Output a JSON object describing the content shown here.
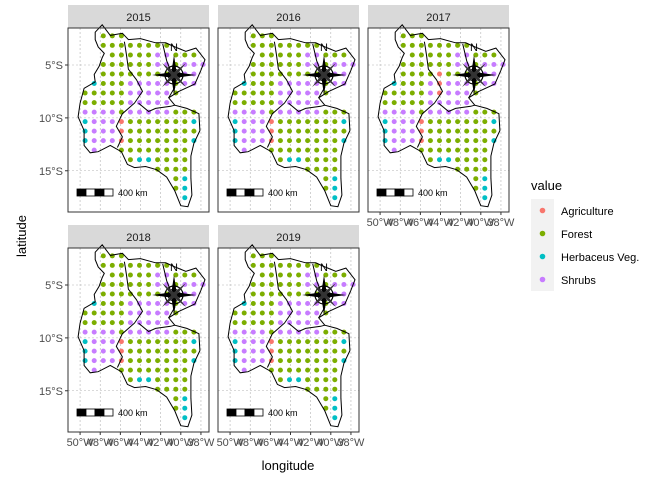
{
  "chart_data": {
    "type": "scatter",
    "subtype": "faceted spatial point map",
    "xlabel": "longitude",
    "ylabel": "latitude",
    "x_ticks": [
      "50°W",
      "48°W",
      "46°W",
      "44°W",
      "42°W",
      "40°W",
      "38°W"
    ],
    "y_ticks": [
      "5°S",
      "10°S",
      "15°S"
    ],
    "xlim": [
      -51.2,
      -37.2
    ],
    "ylim": [
      -18.9,
      -1.5
    ],
    "grid": true,
    "legend": {
      "title": "value",
      "position": "right",
      "entries": [
        {
          "label": "Agriculture",
          "color": "#F8766D"
        },
        {
          "label": "Forest",
          "color": "#7CAE00"
        },
        {
          "label": "Herbaceus Veg.",
          "color": "#00BFC4"
        },
        {
          "label": "Shrubs",
          "color": "#C77CFF"
        }
      ]
    },
    "facets": [
      {
        "year": "2015",
        "agri_shift": 0
      },
      {
        "year": "2016",
        "agri_shift": 0
      },
      {
        "year": "2017",
        "agri_shift": 1
      },
      {
        "year": "2018",
        "agri_shift": 0
      },
      {
        "year": "2019",
        "agri_shift": 0
      }
    ],
    "scale_bar_label": "400 km",
    "north_label": "N"
  }
}
